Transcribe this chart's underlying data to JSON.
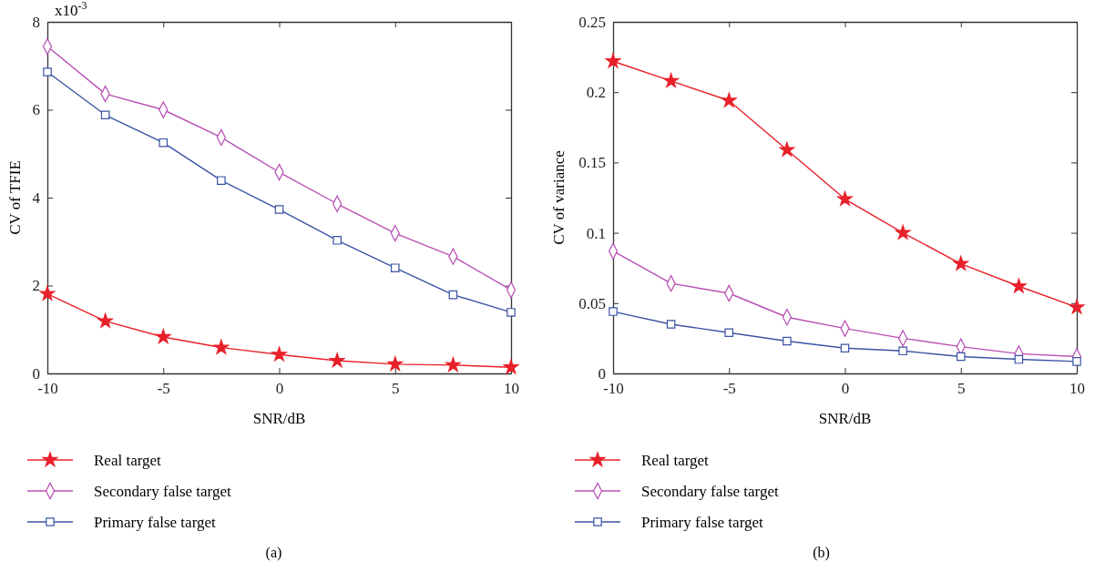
{
  "chart_data": [
    {
      "type": "line",
      "title": "(a)",
      "xlabel": "SNR/dB",
      "ylabel": "CV of TFIE",
      "x": [
        -10,
        -7.5,
        -5,
        -2.5,
        0,
        2.5,
        5,
        7.5,
        10
      ],
      "xlim": [
        -10,
        10
      ],
      "xticks": [
        -10,
        -5,
        0,
        5,
        10
      ],
      "ylim": [
        0,
        8
      ],
      "yticks": [
        0,
        2,
        4,
        6,
        8
      ],
      "annotations": [
        "x10$^{-3}$"
      ],
      "grid": false,
      "legend": "bottom",
      "line_style": "solid",
      "series": [
        {
          "name": "Real target",
          "color": "#e8202a",
          "marker": "star",
          "values": [
            1.81,
            1.19,
            0.83,
            0.59,
            0.43,
            0.29,
            0.21,
            0.19,
            0.14
          ]
        },
        {
          "name": "Secondary false target",
          "color": "#b84fb5",
          "marker": "diamond",
          "values": [
            7.44,
            6.36,
            6.0,
            5.37,
            4.58,
            3.86,
            3.19,
            2.66,
            1.9
          ]
        },
        {
          "name": "Primary false target",
          "color": "#3a53a4",
          "marker": "square",
          "values": [
            6.86,
            5.88,
            5.25,
            4.39,
            3.73,
            3.03,
            2.4,
            1.79,
            1.39
          ]
        }
      ]
    },
    {
      "type": "line",
      "title": "(b)",
      "xlabel": "SNR/dB",
      "ylabel": "CV of variance",
      "x": [
        -10,
        -7.5,
        -5,
        -2.5,
        0,
        2.5,
        5,
        7.5,
        10
      ],
      "xlim": [
        -10,
        10
      ],
      "xticks": [
        -10,
        -5,
        0,
        5,
        10
      ],
      "ylim": [
        0,
        0.25
      ],
      "yticks": [
        0,
        0.05,
        0.1,
        0.15,
        0.2,
        0.25
      ],
      "grid": false,
      "legend": "bottom",
      "line_style": "solid",
      "series": [
        {
          "name": "Real target",
          "color": "#e8202a",
          "marker": "star",
          "values": [
            0.222,
            0.208,
            0.194,
            0.159,
            0.124,
            0.1,
            0.078,
            0.062,
            0.047
          ]
        },
        {
          "name": "Secondary false target",
          "color": "#b84fb5",
          "marker": "diamond",
          "values": [
            0.087,
            0.064,
            0.057,
            0.04,
            0.032,
            0.025,
            0.019,
            0.014,
            0.012
          ]
        },
        {
          "name": "Primary false target",
          "color": "#3a53a4",
          "marker": "square",
          "values": [
            0.044,
            0.035,
            0.029,
            0.023,
            0.018,
            0.016,
            0.012,
            0.01,
            0.0085
          ]
        }
      ]
    }
  ]
}
